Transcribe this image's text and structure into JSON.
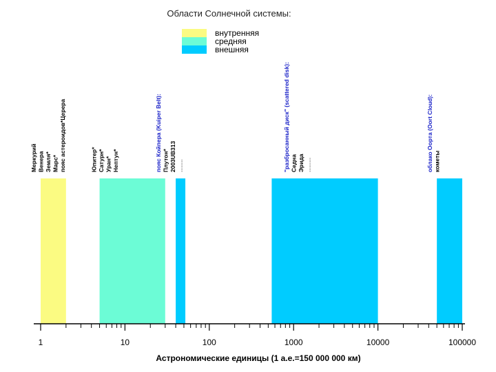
{
  "title": "Области Солнечной системы:",
  "legend": [
    {
      "label": "внутренняя",
      "color": "#fbfb82"
    },
    {
      "label": "средняя",
      "color": "#6cfcd6"
    },
    {
      "label": "внешняя",
      "color": "#00ccff"
    }
  ],
  "axis": {
    "label": "Астрономические единицы (1 а.е.=150 000 000 км)",
    "scale": "log",
    "range": [
      1,
      100000
    ],
    "ticks": [
      "1",
      "10",
      "100",
      "1000",
      "10000",
      "100000"
    ]
  },
  "regions": [
    {
      "name": "внутренняя",
      "from": 1,
      "to": 2,
      "color": "#fbfb82"
    },
    {
      "name": "средняя",
      "from": 5,
      "to": 30,
      "color": "#6cfcd6"
    },
    {
      "name": "внешняя",
      "from": 40,
      "to": 52,
      "color": "#00ccff"
    },
    {
      "name": "внешняя",
      "from": 550,
      "to": 10000,
      "color": "#00ccff"
    },
    {
      "name": "внешняя",
      "from": 50000,
      "to": 100000,
      "color": "#00ccff"
    }
  ],
  "object_groups": [
    {
      "at": 1.0,
      "lines": [
        {
          "text": "Меркурий",
          "color": "#000000",
          "bold": true
        },
        {
          "text": "Венера",
          "color": "#000000",
          "bold": true
        },
        {
          "text": "Земля*",
          "color": "#000000",
          "bold": true
        },
        {
          "text": "Марс*",
          "color": "#000000",
          "bold": true
        },
        {
          "text": "пояс астероидов*Церера",
          "color": "#000000",
          "bold": true
        }
      ]
    },
    {
      "at": 5.2,
      "lines": [
        {
          "text": "Юпитер*",
          "color": "#000000",
          "bold": true
        },
        {
          "text": "Сатурн*",
          "color": "#000000",
          "bold": true
        },
        {
          "text": "Уран*",
          "color": "#000000",
          "bold": true
        },
        {
          "text": "Нептун*",
          "color": "#000000",
          "bold": true
        }
      ]
    },
    {
      "at": 30,
      "lines": [
        {
          "text": "пояс Койпера (Kuiper Belt):",
          "color": "#1a22c8",
          "bold": true
        },
        {
          "text": "Плутон*",
          "color": "#000000",
          "bold": true
        },
        {
          "text": "2003UB313",
          "color": "#000000",
          "bold": true
        },
        {
          "text": "........",
          "color": "#000000",
          "bold": false
        }
      ]
    },
    {
      "at": 1000,
      "lines": [
        {
          "text": "\"разбросанный диск\" (scattered disk):",
          "color": "#1a22c8",
          "bold": true
        },
        {
          "text": "Седна",
          "color": "#000000",
          "bold": true
        },
        {
          "text": "Эрида",
          "color": "#000000",
          "bold": true
        },
        {
          "text": ".........",
          "color": "#000000",
          "bold": false
        }
      ]
    },
    {
      "at": 50000,
      "lines": [
        {
          "text": "облако Оорта (Oort Cloud):",
          "color": "#1a22c8",
          "bold": true
        },
        {
          "text": "кометы",
          "color": "#000000",
          "bold": true
        }
      ]
    }
  ]
}
